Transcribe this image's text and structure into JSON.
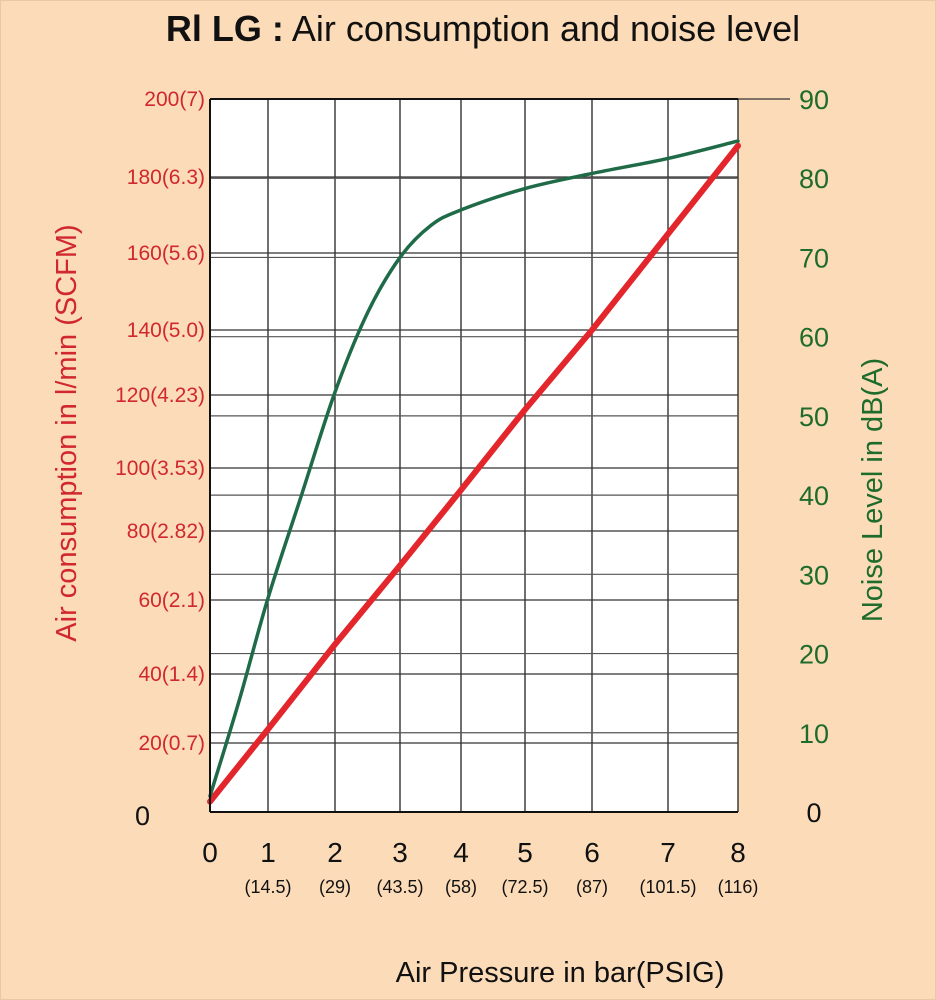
{
  "chart_data": {
    "type": "line",
    "title_bold": "Rl LG :",
    "title_rest": " Air consumption and noise level",
    "xlabel": "Air  Pressure in bar(PSIG)",
    "ylabel_left": "Air  consumption in l/min (SCFM)",
    "ylabel_right": "Noise Level in dB(A)",
    "x_ticks": [
      0,
      1,
      2,
      3,
      4,
      5,
      6,
      7,
      8
    ],
    "x_tick_labels": [
      "0",
      "1",
      "2",
      "3",
      "4",
      "5",
      "6",
      "7",
      "8"
    ],
    "x_sub_labels": [
      "",
      "(14.5)",
      "(29)",
      "(43.5)",
      "(58)",
      "(72.5)",
      "(87)",
      "(101.5)",
      "(116)"
    ],
    "left_ticks": [
      0,
      20,
      40,
      60,
      80,
      100,
      120,
      140,
      160,
      180,
      200
    ],
    "left_tick_labels": [
      "0",
      "20(0.7)",
      "40(1.4)",
      "60(2.1)",
      "80(2.82)",
      "100(3.53)",
      "120(4.23)",
      "140(5.0)",
      "160(5.6)",
      "180(6.3)",
      "200(7)"
    ],
    "right_ticks": [
      0,
      10,
      20,
      30,
      40,
      50,
      60,
      70,
      80,
      90
    ],
    "right_tick_labels": [
      "0",
      "10",
      "20",
      "30",
      "40",
      "50",
      "60",
      "70",
      "80",
      "90"
    ],
    "xlim": [
      0,
      8
    ],
    "ylim_left": [
      0,
      200
    ],
    "ylim_right": [
      0,
      90
    ],
    "grid": true,
    "series": [
      {
        "name": "Air consumption (l/min)",
        "axis": "left",
        "color": "#e3262c",
        "x": [
          0,
          1,
          2,
          3,
          4,
          5,
          6,
          7,
          8
        ],
        "y": [
          3,
          24,
          48,
          70,
          93,
          116,
          140,
          165,
          188
        ]
      },
      {
        "name": "Noise level (dB(A))",
        "axis": "right",
        "color": "#1f6b48",
        "x": [
          0,
          0.5,
          1,
          1.5,
          2,
          2.5,
          3,
          3.5,
          4,
          5,
          6,
          7,
          8
        ],
        "y": [
          2,
          14,
          27,
          40,
          53,
          63,
          70,
          74,
          76,
          78.7,
          80.6,
          82.5,
          84.7
        ]
      }
    ]
  }
}
